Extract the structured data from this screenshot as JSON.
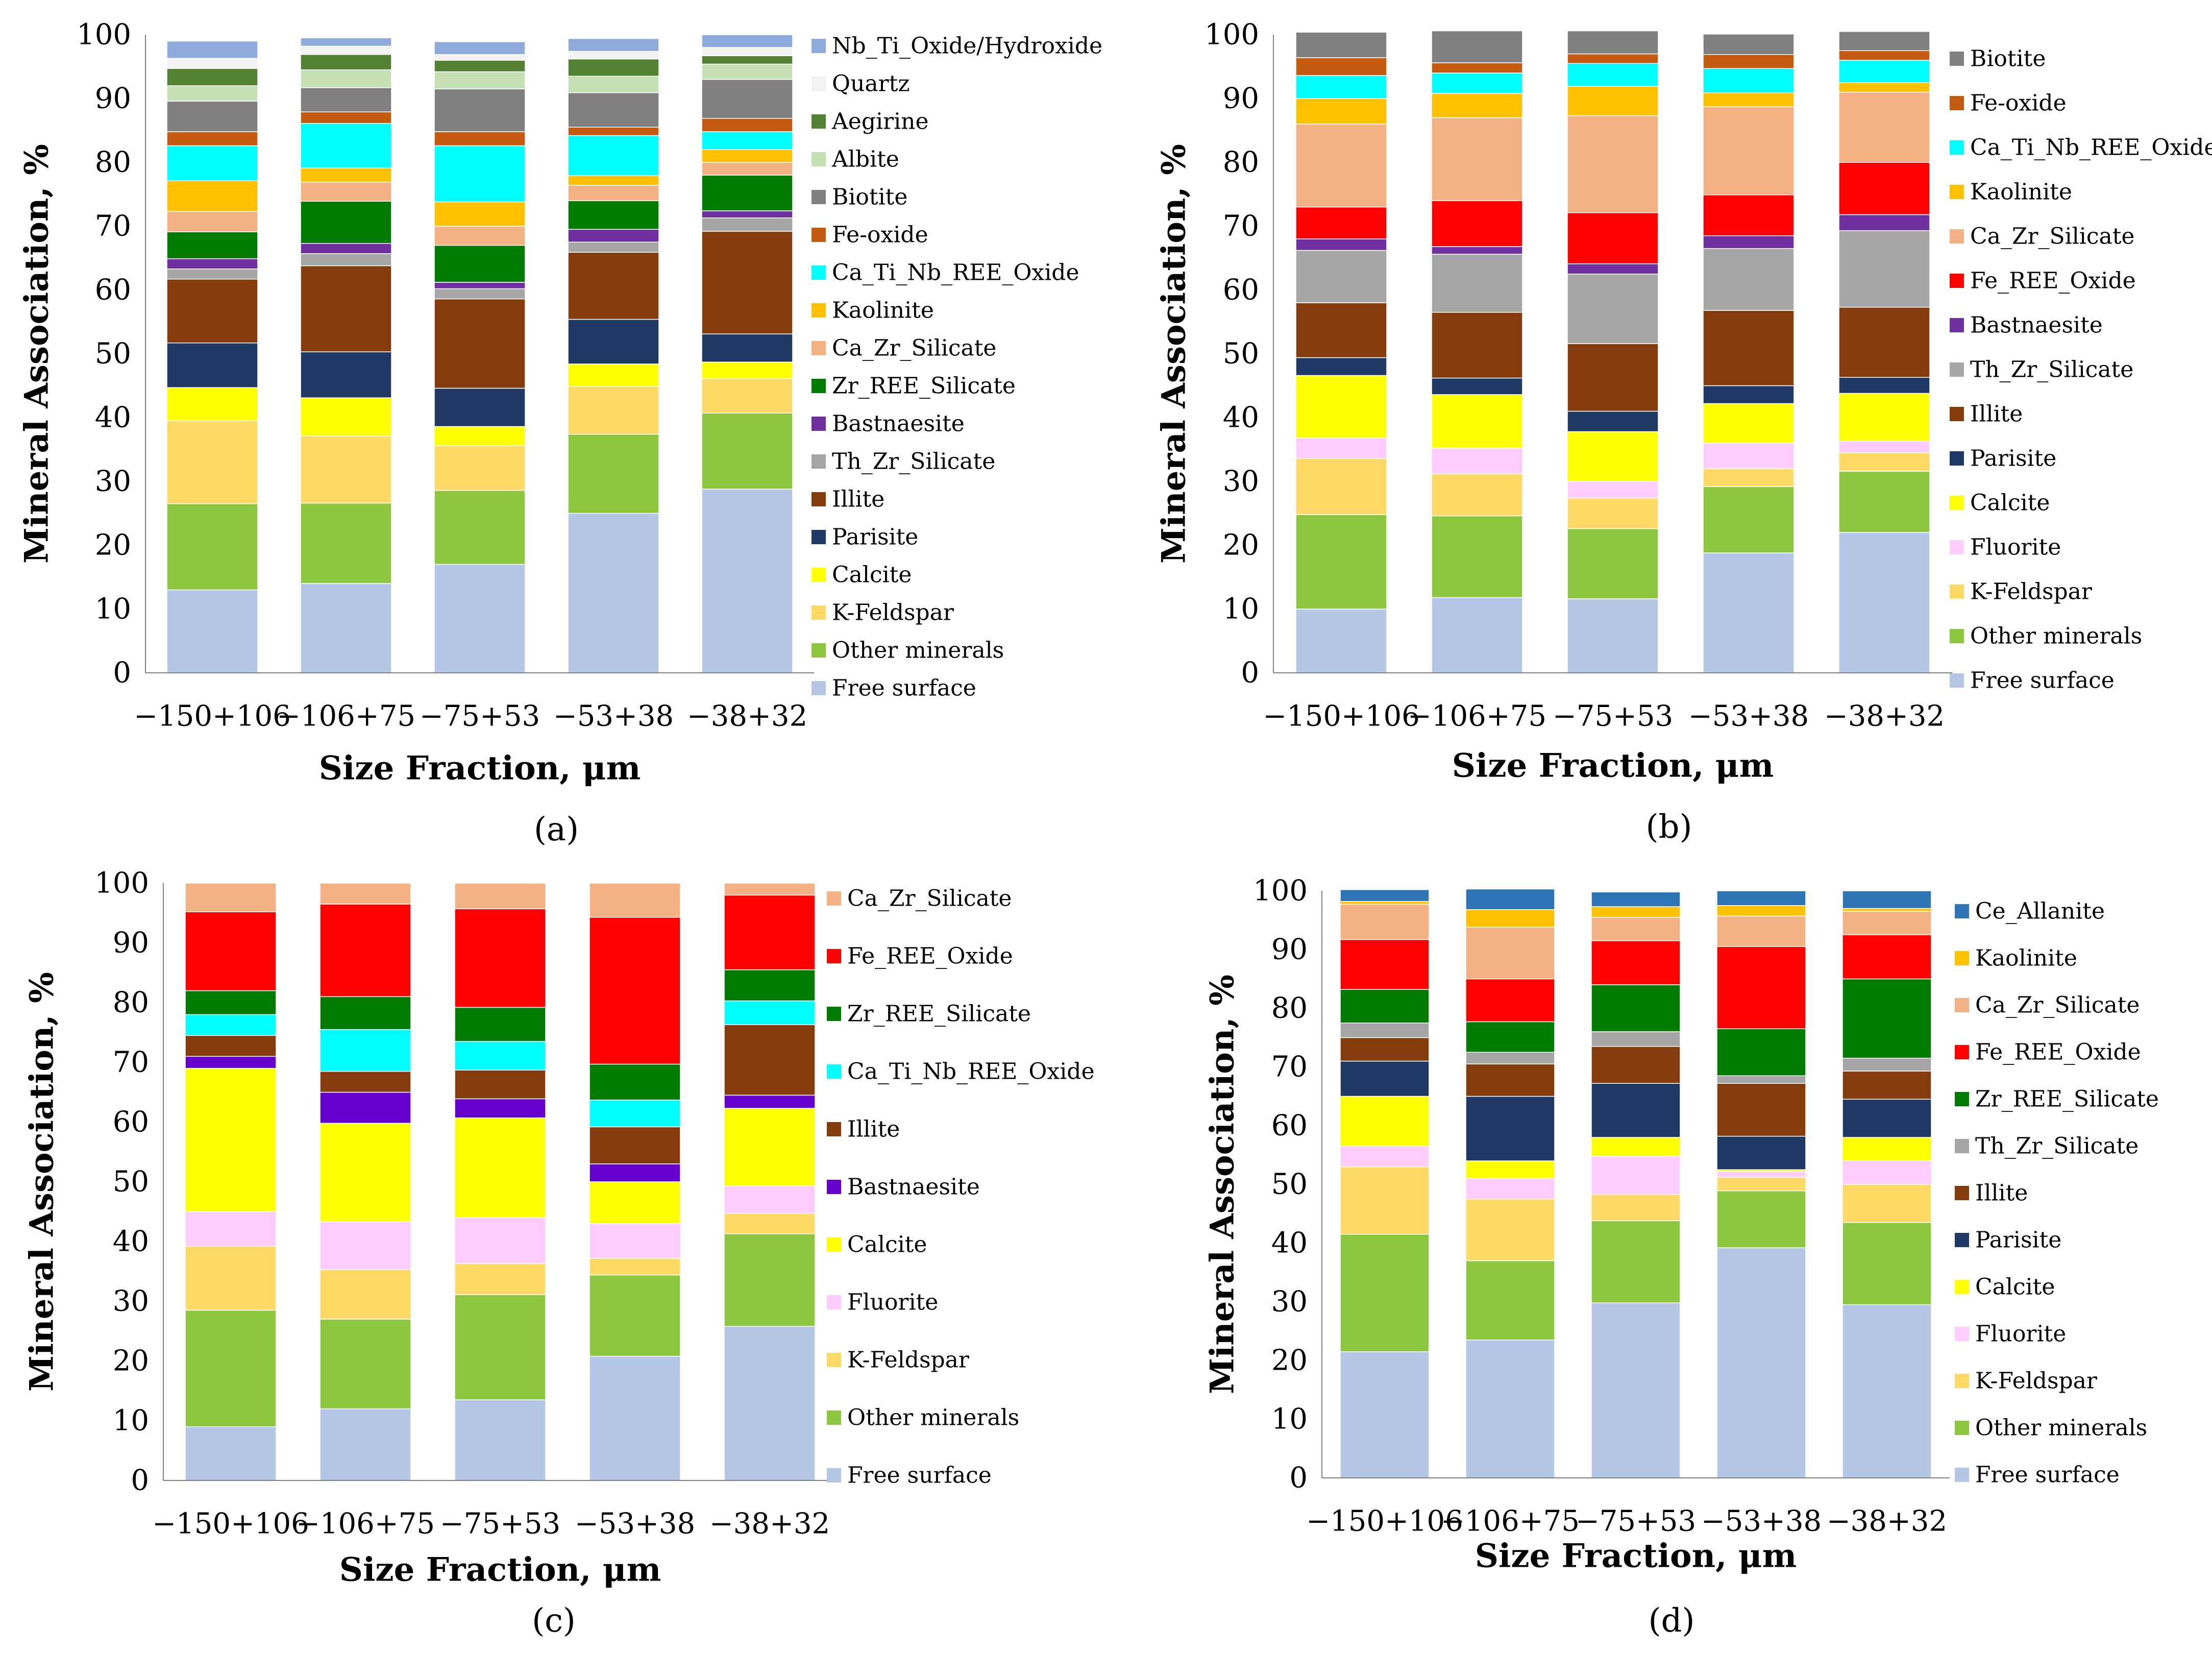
{
  "figure": {
    "panels": [
      "a",
      "b",
      "c",
      "d"
    ]
  },
  "chart_data": [
    {
      "panel": "(a)",
      "panel_letter": "a",
      "type": "bar",
      "stacked": true,
      "xlabel": "Size Fraction, μm",
      "ylabel": "Mineral Association, %",
      "ylim": [
        0,
        100
      ],
      "yticks": [
        0,
        10,
        20,
        30,
        40,
        50,
        60,
        70,
        80,
        90,
        100
      ],
      "categories": [
        "−150+106",
        "−106+75",
        "−75+53",
        "−53+38",
        "−38+32"
      ],
      "series": [
        {
          "name": "Free surface",
          "color": "#b4c7e7",
          "values": [
            13.0,
            14.0,
            17.0,
            25.0,
            28.8
          ]
        },
        {
          "name": "Other minerals",
          "color": "#8dc63f",
          "values": [
            13.5,
            12.6,
            11.6,
            12.4,
            11.9
          ]
        },
        {
          "name": "K-Feldspar",
          "color": "#ffd966",
          "values": [
            13.0,
            10.5,
            7.0,
            7.5,
            5.4
          ]
        },
        {
          "name": "Calcite",
          "color": "#ffff00",
          "values": [
            5.2,
            6.0,
            3.0,
            3.5,
            2.6
          ]
        },
        {
          "name": "Parisite",
          "color": "#203864",
          "values": [
            7.0,
            7.2,
            6.0,
            7.0,
            4.4
          ]
        },
        {
          "name": "Illite",
          "color": "#843c0c",
          "values": [
            10.0,
            13.5,
            14.0,
            10.5,
            16.1
          ]
        },
        {
          "name": "Th_Zr_Silicate",
          "color": "#a6a6a6",
          "values": [
            1.6,
            1.9,
            1.6,
            1.6,
            2.1
          ]
        },
        {
          "name": "Bastnaesite",
          "color": "#7030a0",
          "values": [
            1.6,
            1.6,
            1.0,
            2.0,
            1.1
          ]
        },
        {
          "name": "Zr_REE_Silicate",
          "color": "#007a00",
          "values": [
            4.2,
            6.6,
            5.8,
            4.5,
            5.6
          ]
        },
        {
          "name": "Ca_Zr_Silicate",
          "color": "#f4b183",
          "values": [
            3.2,
            3.0,
            3.0,
            2.4,
            2.0
          ]
        },
        {
          "name": "Kaolinite",
          "color": "#ffc000",
          "values": [
            4.8,
            2.2,
            3.8,
            1.5,
            2.0
          ]
        },
        {
          "name": "Ca_Ti_Nb_REE_Oxide",
          "color": "#00ffff",
          "values": [
            5.5,
            7.0,
            8.8,
            6.3,
            2.8
          ]
        },
        {
          "name": "Fe-oxide",
          "color": "#c55a11",
          "values": [
            2.2,
            1.8,
            2.2,
            1.3,
            2.1
          ]
        },
        {
          "name": "Biotite",
          "color": "#808080",
          "values": [
            4.8,
            3.8,
            6.7,
            5.4,
            6.1
          ]
        },
        {
          "name": "Albite",
          "color": "#c5e0b4",
          "values": [
            2.4,
            2.8,
            2.7,
            2.6,
            2.4
          ]
        },
        {
          "name": "Aegirine",
          "color": "#548235",
          "values": [
            2.7,
            2.4,
            1.8,
            2.7,
            1.3
          ]
        },
        {
          "name": "Quartz",
          "color": "#f2f2f2",
          "values": [
            1.6,
            1.3,
            0.9,
            1.2,
            1.3
          ]
        },
        {
          "name": "Nb_Ti_Oxide/Hydroxide",
          "color": "#8faadc",
          "values": [
            2.7,
            1.3,
            2.0,
            2.0,
            2.0
          ]
        }
      ]
    },
    {
      "panel": "(b)",
      "panel_letter": "b",
      "type": "bar",
      "stacked": true,
      "xlabel": "Size Fraction, μm",
      "ylabel": "Mineral Association, %",
      "ylim": [
        0,
        100
      ],
      "yticks": [
        0,
        10,
        20,
        30,
        40,
        50,
        60,
        70,
        80,
        90,
        100
      ],
      "categories": [
        "−150+106",
        "−106+75",
        "−75+53",
        "−53+38",
        "−38+32"
      ],
      "series": [
        {
          "name": "Free surface",
          "color": "#b4c7e7",
          "values": [
            10.0,
            11.8,
            11.6,
            18.8,
            22.0
          ]
        },
        {
          "name": "Other minerals",
          "color": "#8dc63f",
          "values": [
            14.8,
            12.8,
            11.0,
            10.4,
            9.6
          ]
        },
        {
          "name": "K-Feldspar",
          "color": "#ffd966",
          "values": [
            8.8,
            6.6,
            4.8,
            2.8,
            2.9
          ]
        },
        {
          "name": "Fluorite",
          "color": "#ffccff",
          "values": [
            3.2,
            4.0,
            2.6,
            4.0,
            1.8
          ]
        },
        {
          "name": "Calcite",
          "color": "#ffff00",
          "values": [
            9.8,
            8.4,
            7.8,
            6.2,
            7.5
          ]
        },
        {
          "name": "Parisite",
          "color": "#203864",
          "values": [
            2.8,
            2.6,
            3.2,
            2.8,
            2.5
          ]
        },
        {
          "name": "Illite",
          "color": "#843c0c",
          "values": [
            8.6,
            10.3,
            10.6,
            11.8,
            11.0
          ]
        },
        {
          "name": "Th_Zr_Silicate",
          "color": "#a6a6a6",
          "values": [
            8.2,
            9.1,
            10.9,
            9.7,
            12.0
          ]
        },
        {
          "name": "Bastnaesite",
          "color": "#7030a0",
          "values": [
            1.8,
            1.2,
            1.6,
            2.0,
            2.5
          ]
        },
        {
          "name": "Fe_REE_Oxide",
          "color": "#ff0000",
          "values": [
            5.0,
            7.2,
            8.0,
            6.4,
            8.2
          ]
        },
        {
          "name": "Ca_Zr_Silicate",
          "color": "#f4b183",
          "values": [
            13.0,
            13.0,
            15.2,
            13.8,
            11.0
          ]
        },
        {
          "name": "Kaolinite",
          "color": "#ffc000",
          "values": [
            4.0,
            3.8,
            4.6,
            2.2,
            1.5
          ]
        },
        {
          "name": "Ca_Ti_Nb_REE_Oxide",
          "color": "#00ffff",
          "values": [
            3.6,
            3.2,
            3.6,
            3.8,
            3.5
          ]
        },
        {
          "name": "Fe-oxide",
          "color": "#c55a11",
          "values": [
            2.8,
            1.6,
            1.5,
            2.2,
            1.5
          ]
        },
        {
          "name": "Biotite",
          "color": "#808080",
          "values": [
            4.0,
            5.0,
            3.6,
            3.2,
            3.0
          ]
        }
      ]
    },
    {
      "panel": "(c)",
      "panel_letter": "c",
      "type": "bar",
      "stacked": true,
      "xlabel": "Size Fraction, μm",
      "ylabel": "Mineral Association, %",
      "ylim": [
        0,
        100
      ],
      "yticks": [
        0,
        10,
        20,
        30,
        40,
        50,
        60,
        70,
        80,
        90,
        100
      ],
      "categories": [
        "−150+106",
        "−106+75",
        "−75+53",
        "−53+38",
        "−38+32"
      ],
      "series": [
        {
          "name": "Free surface",
          "color": "#b4c7e7",
          "values": [
            9.0,
            12.0,
            13.5,
            20.8,
            25.8
          ]
        },
        {
          "name": "Other minerals",
          "color": "#8dc63f",
          "values": [
            19.5,
            15.0,
            17.6,
            13.6,
            15.5
          ]
        },
        {
          "name": "K-Feldspar",
          "color": "#ffd966",
          "values": [
            10.7,
            8.3,
            5.2,
            2.8,
            3.4
          ]
        },
        {
          "name": "Fluorite",
          "color": "#ffccff",
          "values": [
            5.8,
            8.0,
            7.7,
            5.8,
            4.6
          ]
        },
        {
          "name": "Calcite",
          "color": "#ffff00",
          "values": [
            24.0,
            16.5,
            16.7,
            7.0,
            13.0
          ]
        },
        {
          "name": "Bastnaesite",
          "color": "#6600cc",
          "values": [
            2.0,
            5.2,
            3.2,
            3.0,
            2.2
          ]
        },
        {
          "name": "Illite",
          "color": "#843c0c",
          "values": [
            3.5,
            3.5,
            4.8,
            6.2,
            11.8
          ]
        },
        {
          "name": "Ca_Ti_Nb_REE_Oxide",
          "color": "#00ffff",
          "values": [
            3.5,
            7.0,
            4.8,
            4.5,
            4.0
          ]
        },
        {
          "name": "Zr_REE_Silicate",
          "color": "#007a00",
          "values": [
            4.0,
            5.5,
            5.7,
            6.0,
            5.2
          ]
        },
        {
          "name": "Fe_REE_Oxide",
          "color": "#ff0000",
          "values": [
            13.2,
            15.5,
            16.5,
            24.6,
            12.5
          ]
        },
        {
          "name": "Ca_Zr_Silicate",
          "color": "#f4b183",
          "values": [
            4.8,
            3.5,
            4.3,
            5.7,
            2.0
          ]
        }
      ]
    },
    {
      "panel": "(d)",
      "panel_letter": "d",
      "type": "bar",
      "stacked": true,
      "xlabel": "Size Fraction, μm",
      "ylabel": "Mineral Association, %",
      "ylim": [
        0,
        100
      ],
      "yticks": [
        0,
        10,
        20,
        30,
        40,
        50,
        60,
        70,
        80,
        90,
        100
      ],
      "categories": [
        "−150+106",
        "−106+75",
        "−75+53",
        "−53+38",
        "−38+32"
      ],
      "series": [
        {
          "name": "Free surface",
          "color": "#b4c7e7",
          "values": [
            21.5,
            23.5,
            29.8,
            39.2,
            29.5
          ]
        },
        {
          "name": "Other minerals",
          "color": "#8dc63f",
          "values": [
            20.0,
            13.5,
            14.0,
            9.7,
            14.0
          ]
        },
        {
          "name": "K-Feldspar",
          "color": "#ffd966",
          "values": [
            11.5,
            10.5,
            4.5,
            2.3,
            6.5
          ]
        },
        {
          "name": "Fluorite",
          "color": "#ffccff",
          "values": [
            3.5,
            3.5,
            6.5,
            1.0,
            4.0
          ]
        },
        {
          "name": "Calcite",
          "color": "#ffff00",
          "values": [
            8.5,
            3.0,
            3.2,
            0.3,
            4.0
          ]
        },
        {
          "name": "Parisite",
          "color": "#203864",
          "values": [
            6.0,
            11.0,
            9.2,
            5.7,
            6.5
          ]
        },
        {
          "name": "Illite",
          "color": "#843c0c",
          "values": [
            4.0,
            5.5,
            6.3,
            9.0,
            4.8
          ]
        },
        {
          "name": "Th_Zr_Silicate",
          "color": "#a6a6a6",
          "values": [
            2.5,
            2.0,
            2.5,
            1.3,
            2.2
          ]
        },
        {
          "name": "Zr_REE_Silicate",
          "color": "#007a00",
          "values": [
            5.7,
            5.2,
            8.0,
            8.0,
            13.5
          ]
        },
        {
          "name": "Fe_REE_Oxide",
          "color": "#ff0000",
          "values": [
            8.5,
            7.3,
            7.5,
            14.0,
            7.5
          ]
        },
        {
          "name": "Ca_Zr_Silicate",
          "color": "#f4b183",
          "values": [
            6.0,
            8.8,
            4.0,
            5.2,
            4.0
          ]
        },
        {
          "name": "Kaolinite",
          "color": "#ffc000",
          "values": [
            0.5,
            3.0,
            1.8,
            1.8,
            0.5
          ]
        },
        {
          "name": "Ce_Allanite",
          "color": "#2e75b6",
          "values": [
            2.0,
            3.5,
            2.5,
            2.5,
            3.0
          ]
        }
      ]
    }
  ]
}
